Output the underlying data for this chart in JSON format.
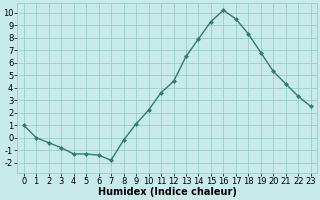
{
  "x": [
    0,
    1,
    2,
    3,
    4,
    5,
    6,
    7,
    8,
    9,
    10,
    11,
    12,
    13,
    14,
    15,
    16,
    17,
    18,
    19,
    20,
    21,
    22,
    23
  ],
  "y": [
    1,
    0.0,
    -0.4,
    -0.8,
    -1.3,
    -1.3,
    -1.4,
    -1.8,
    -0.2,
    1.1,
    2.2,
    3.6,
    4.5,
    6.5,
    7.9,
    9.3,
    10.2,
    9.5,
    8.3,
    6.8,
    5.3,
    4.3,
    3.3,
    2.5
  ],
  "line_color": "#2e7d6e",
  "marker": "D",
  "markersize": 2.0,
  "linewidth": 1.0,
  "bg_color": "#c8eaea",
  "grid_color": "#90c8c8",
  "xlabel": "Humidex (Indice chaleur)",
  "xlabel_fontsize": 7,
  "tick_fontsize": 6,
  "ylim": [
    -2.8,
    10.8
  ],
  "xlim": [
    -0.5,
    23.5
  ],
  "yticks": [
    -2,
    -1,
    0,
    1,
    2,
    3,
    4,
    5,
    6,
    7,
    8,
    9,
    10
  ],
  "xticks": [
    0,
    1,
    2,
    3,
    4,
    5,
    6,
    7,
    8,
    9,
    10,
    11,
    12,
    13,
    14,
    15,
    16,
    17,
    18,
    19,
    20,
    21,
    22,
    23
  ]
}
